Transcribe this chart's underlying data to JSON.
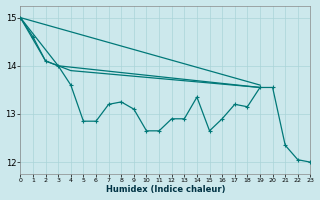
{
  "xlabel": "Humidex (Indice chaleur)",
  "bg_color": "#cce8ec",
  "grid_color": "#aad4d8",
  "line_color": "#007878",
  "xlim": [
    0,
    23
  ],
  "ylim": [
    11.75,
    15.25
  ],
  "yticks": [
    12,
    13,
    14,
    15
  ],
  "xticks": [
    0,
    1,
    2,
    3,
    4,
    5,
    6,
    7,
    8,
    9,
    10,
    11,
    12,
    13,
    14,
    15,
    16,
    17,
    18,
    19,
    20,
    21,
    22,
    23
  ],
  "line1_x": [
    0,
    19
  ],
  "line1_y": [
    15.0,
    13.6
  ],
  "line2_x": [
    0,
    3,
    19
  ],
  "line2_y": [
    15.0,
    14.0,
    13.55
  ],
  "line3_x": [
    0,
    2,
    3,
    4,
    19
  ],
  "line3_y": [
    15.0,
    14.1,
    14.0,
    13.9,
    13.55
  ],
  "line4_zigzag_x": [
    0,
    1,
    2,
    3,
    4,
    5,
    6,
    7,
    8,
    9,
    10,
    11,
    12,
    13,
    14,
    15,
    16,
    17,
    18,
    19,
    20,
    21,
    22,
    23
  ],
  "line4_zigzag_y": [
    15.0,
    14.6,
    14.1,
    14.0,
    13.6,
    12.85,
    12.85,
    13.2,
    13.25,
    13.1,
    12.65,
    12.65,
    12.9,
    12.9,
    13.35,
    12.65,
    12.9,
    13.2,
    13.15,
    13.55,
    13.55,
    12.35,
    12.05,
    12.0
  ]
}
